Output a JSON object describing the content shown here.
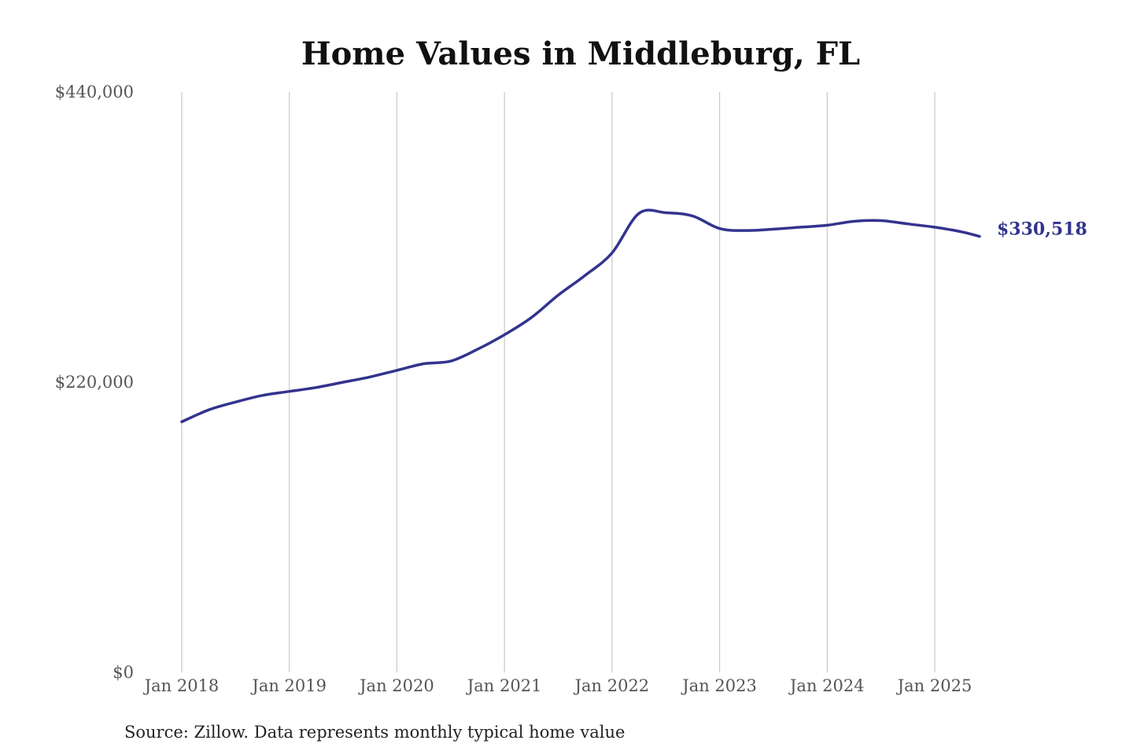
{
  "chart_data": {
    "type": "line",
    "title": "Home Values in Middleburg, FL",
    "source_note": "Source: Zillow. Data represents monthly typical home value",
    "ylim": [
      0,
      440000
    ],
    "y_ticks": [
      {
        "value": 0,
        "label": "$0"
      },
      {
        "value": 220000,
        "label": "$220,000"
      },
      {
        "value": 440000,
        "label": "$440,000"
      }
    ],
    "x_ticks": [
      {
        "value": "2018-01",
        "label": "Jan 2018"
      },
      {
        "value": "2019-01",
        "label": "Jan 2019"
      },
      {
        "value": "2020-01",
        "label": "Jan 2020"
      },
      {
        "value": "2021-01",
        "label": "Jan 2021"
      },
      {
        "value": "2022-01",
        "label": "Jan 2022"
      },
      {
        "value": "2023-01",
        "label": "Jan 2023"
      },
      {
        "value": "2024-01",
        "label": "Jan 2024"
      },
      {
        "value": "2025-01",
        "label": "Jan 2025"
      }
    ],
    "xlim": [
      "2018-01",
      "2025-06"
    ],
    "grid": "vertical",
    "line_color": "#33338f",
    "end_label": "$330,518",
    "series": [
      {
        "x": [
          "2018-01",
          "2018-04",
          "2018-07",
          "2018-10",
          "2019-01",
          "2019-04",
          "2019-07",
          "2019-10",
          "2020-01",
          "2020-04",
          "2020-07",
          "2020-10",
          "2021-01",
          "2021-04",
          "2021-07",
          "2021-10",
          "2022-01",
          "2022-04",
          "2022-07",
          "2022-10",
          "2023-01",
          "2023-04",
          "2023-07",
          "2023-10",
          "2024-01",
          "2024-04",
          "2024-07",
          "2024-10",
          "2025-01",
          "2025-04",
          "2025-06"
        ],
        "values": [
          190000,
          199000,
          205000,
          210000,
          213000,
          216000,
          220000,
          224000,
          229000,
          234000,
          236000,
          245000,
          256000,
          269000,
          286000,
          301000,
          318000,
          348000,
          348500,
          346000,
          336500,
          335000,
          336000,
          337500,
          339000,
          342000,
          342500,
          340000,
          337500,
          334000,
          330518
        ]
      }
    ]
  }
}
